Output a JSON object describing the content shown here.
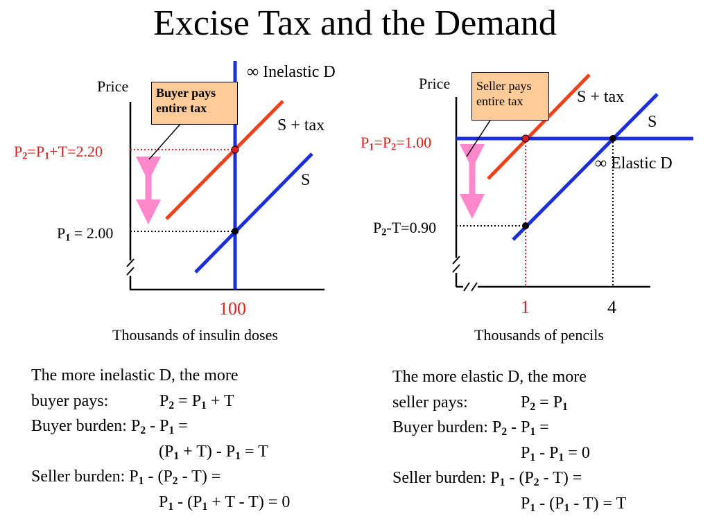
{
  "title": "Excise Tax and the Demand",
  "colors": {
    "supply": "#1a2ee0",
    "taxed_supply": "#f0401a",
    "guide_red": "#e02020",
    "arrow": "#ff88cc",
    "callout_fill": "#ffcc99"
  },
  "left_graph": {
    "y_axis_label": "Price",
    "callout": {
      "line1": "Buyer pays",
      "line2": "entire tax"
    },
    "demand_label": "∞ Inelastic D",
    "s_tax_label": "S + tax",
    "s_label": "S",
    "p2": {
      "p": "P",
      "s2": "2",
      "eq1": "=P",
      "s1": "1",
      "rest": "+T=2.20"
    },
    "p1": {
      "p": "P",
      "s": "1",
      "rest": " = 2.00"
    },
    "x_tick": "100",
    "x_axis_label": "Thousands of insulin doses"
  },
  "right_graph": {
    "y_axis_label": "Price",
    "callout": {
      "line1": "Seller pays",
      "line2": "entire tax"
    },
    "demand_label": "∞ Elastic D",
    "s_tax_label": "S + tax",
    "s_label": "S",
    "p1p2": {
      "p": "P",
      "s1": "1",
      "eq": "=P",
      "s2": "2",
      "rest": "=1.00"
    },
    "p2t": {
      "p": "P",
      "s": "2",
      "rest": "-T=0.90"
    },
    "x_tick_1": "1",
    "x_tick_4": "4",
    "x_axis_label": "Thousands of pencils"
  },
  "left_text": {
    "l1": "The more inelastic D, the more",
    "l2a": "buyer pays:",
    "l2b": {
      "a": "P",
      "s2": "2",
      "b": " = P",
      "s1": "1",
      "c": " + T"
    },
    "l3a": "Buyer burden: ",
    "l3b": {
      "a": "P",
      "s2": "2",
      "b": " - P",
      "s1": "1",
      "c": " ="
    },
    "l4": {
      "a": "(P",
      "s1": "1",
      "b": " + T) - P",
      "s1b": "1",
      "c": " = T"
    },
    "l5a": "Seller burden: ",
    "l5b": {
      "a": "P",
      "s1": "1",
      "b": " - (P",
      "s2": "2",
      "c": " - T) ="
    },
    "l6": {
      "a": "P",
      "s1": "1",
      "b": " - (P",
      "s1b": "1",
      "c": " + T - T) = 0"
    }
  },
  "right_text": {
    "l1": "The more elastic D, the more",
    "l2a": "seller pays:",
    "l2b": {
      "a": "P",
      "s2": "2",
      "b": " = P",
      "s1": "1"
    },
    "l3a": "Buyer burden: ",
    "l3b": {
      "a": "P",
      "s2": "2",
      "b": " - P",
      "s1": "1",
      "c": " ="
    },
    "l4": {
      "a": "P",
      "s1": "1",
      "b": " - P",
      "s1b": "1",
      "c": " = 0"
    },
    "l5a": "Seller burden: ",
    "l5b": {
      "a": "P",
      "s1": "1",
      "b": " - (P",
      "s2": "2",
      "c": " - T) ="
    },
    "l6": {
      "a": "P",
      "s1": "1",
      "b": " - (P",
      "s1b": "1",
      "c": " - T) =  T"
    }
  }
}
